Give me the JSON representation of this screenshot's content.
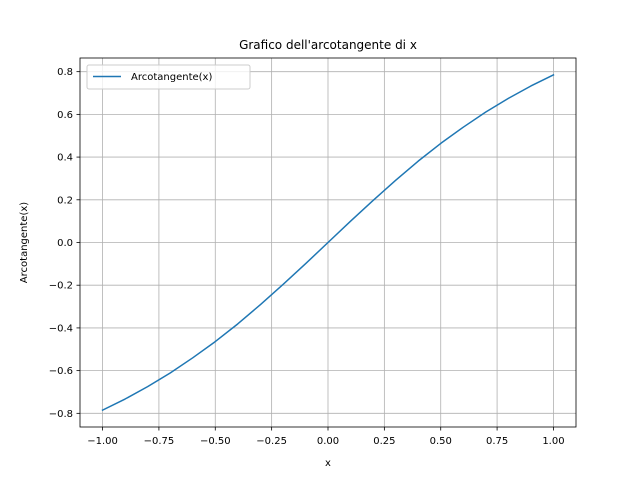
{
  "chart_data": {
    "type": "line",
    "title": "Grafico dell'arcotangente di x",
    "xlabel": "x",
    "ylabel": "Arcotangente(x)",
    "xlim": [
      -1.1,
      1.1
    ],
    "ylim": [
      -0.864,
      0.864
    ],
    "xticks": [
      -1.0,
      -0.75,
      -0.5,
      -0.25,
      0.0,
      0.25,
      0.5,
      0.75,
      1.0
    ],
    "xtick_labels": [
      "−1.00",
      "−0.75",
      "−0.50",
      "−0.25",
      "0.00",
      "0.25",
      "0.50",
      "0.75",
      "1.00"
    ],
    "yticks": [
      -0.8,
      -0.6,
      -0.4,
      -0.2,
      0.0,
      0.2,
      0.4,
      0.6,
      0.8
    ],
    "ytick_labels": [
      "−0.8",
      "−0.6",
      "−0.4",
      "−0.2",
      "0.0",
      "0.2",
      "0.4",
      "0.6",
      "0.8"
    ],
    "grid": true,
    "legend_position": "top-left",
    "series": [
      {
        "name": "Arcotangente(x)",
        "color": "#1f77b4",
        "x": [
          -1.0,
          -0.9,
          -0.8,
          -0.7,
          -0.6,
          -0.5,
          -0.4,
          -0.3,
          -0.2,
          -0.1,
          0.0,
          0.1,
          0.2,
          0.3,
          0.4,
          0.5,
          0.6,
          0.7,
          0.8,
          0.9,
          1.0
        ],
        "y": [
          -0.785,
          -0.733,
          -0.675,
          -0.611,
          -0.54,
          -0.464,
          -0.381,
          -0.291,
          -0.197,
          -0.1,
          0.0,
          0.1,
          0.197,
          0.291,
          0.381,
          0.464,
          0.54,
          0.611,
          0.675,
          0.733,
          0.785
        ]
      }
    ]
  }
}
